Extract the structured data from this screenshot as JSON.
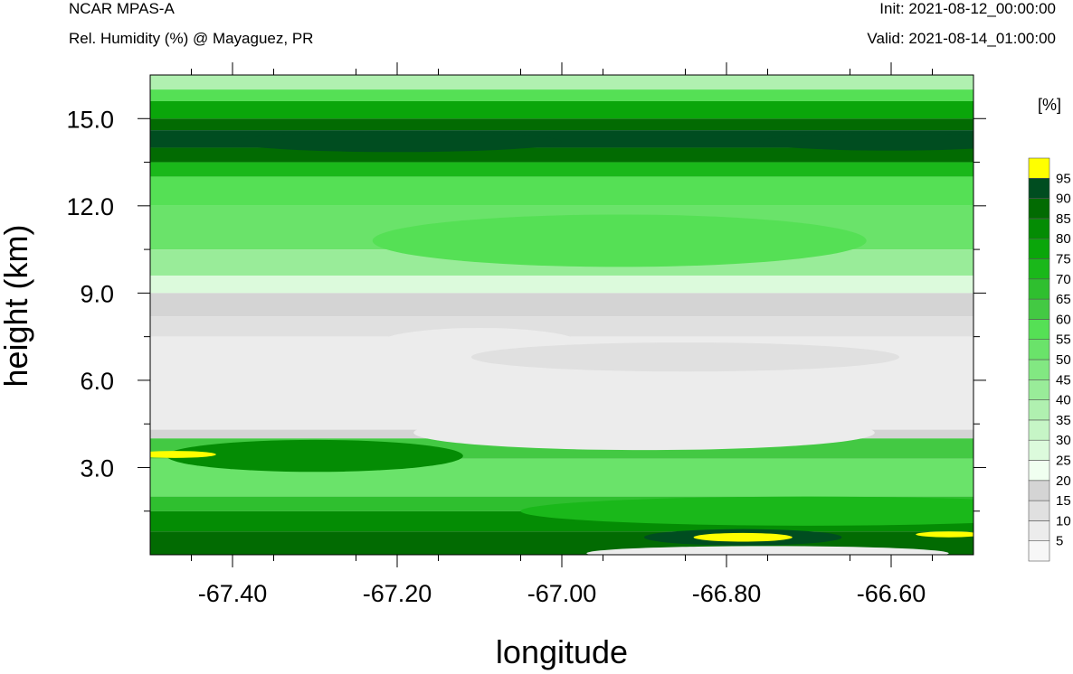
{
  "header": {
    "model": "NCAR MPAS-A",
    "subtitle": "Rel. Humidity (%) @ Mayaguez, PR",
    "init": "Init: 2021-08-12_00:00:00",
    "valid": "Valid: 2021-08-14_01:00:00"
  },
  "chart_data": {
    "type": "heatmap",
    "title": "Rel. Humidity (%) @ Mayaguez, PR",
    "xlabel": "longitude",
    "ylabel": "height (km)",
    "xlim": [
      -67.5,
      -66.5
    ],
    "ylim": [
      0,
      16.5
    ],
    "xticks": [
      -67.4,
      -67.2,
      -67.0,
      -66.8,
      -66.6
    ],
    "xtick_labels": [
      "-67.40",
      "-67.20",
      "-67.00",
      "-66.80",
      "-66.60"
    ],
    "yticks": [
      3.0,
      6.0,
      9.0,
      12.0,
      15.0
    ],
    "ytick_labels": [
      "3.0",
      "6.0",
      "9.0",
      "12.0",
      "15.0"
    ],
    "colorbar": {
      "unit": "[%]",
      "levels": [
        5,
        10,
        15,
        20,
        25,
        30,
        35,
        40,
        45,
        50,
        55,
        60,
        65,
        70,
        75,
        80,
        85,
        90,
        95
      ],
      "colors": [
        "#f7f7f7",
        "#ececec",
        "#e0e0e0",
        "#d4d4d4",
        "#f0fff0",
        "#dcfadc",
        "#c6f5c6",
        "#b0f0b0",
        "#99ec99",
        "#82e882",
        "#6ae36a",
        "#55e055",
        "#43c943",
        "#2fbf2f",
        "#1ab81a",
        "#0aa60a",
        "#048c04",
        "#026b02",
        "#004d20",
        "#ffff00"
      ]
    },
    "bands": [
      {
        "y0": 16.0,
        "y1": 16.5,
        "rh": 35
      },
      {
        "y0": 15.6,
        "y1": 16.0,
        "rh": 55
      },
      {
        "y0": 15.0,
        "y1": 15.6,
        "rh": 75
      },
      {
        "y0": 14.6,
        "y1": 15.0,
        "rh": 85
      },
      {
        "y0": 14.0,
        "y1": 14.6,
        "rh": 92
      },
      {
        "y0": 13.5,
        "y1": 14.0,
        "rh": 85
      },
      {
        "y0": 13.0,
        "y1": 13.5,
        "rh": 70
      },
      {
        "y0": 12.0,
        "y1": 13.0,
        "rh": 55
      },
      {
        "y0": 10.5,
        "y1": 12.0,
        "rh": 50
      },
      {
        "y0": 9.6,
        "y1": 10.5,
        "rh": 40
      },
      {
        "y0": 9.0,
        "y1": 9.6,
        "rh": 27
      },
      {
        "y0": 8.2,
        "y1": 9.0,
        "rh": 17
      },
      {
        "y0": 7.5,
        "y1": 8.2,
        "rh": 12
      },
      {
        "y0": 4.3,
        "y1": 7.5,
        "rh": 5
      },
      {
        "y0": 4.0,
        "y1": 4.3,
        "rh": 17
      },
      {
        "y0": 3.3,
        "y1": 4.0,
        "rh": 60
      },
      {
        "y0": 2.0,
        "y1": 3.3,
        "rh": 52
      },
      {
        "y0": 1.5,
        "y1": 2.0,
        "rh": 65
      },
      {
        "y0": 0.8,
        "y1": 1.5,
        "rh": 80
      },
      {
        "y0": 0.0,
        "y1": 0.8,
        "rh": 88
      }
    ],
    "features": [
      {
        "kind": "ellipse",
        "lon": -67.18,
        "h": 14.2,
        "rlon": 0.1,
        "rh_km": 0.22,
        "rh": 96
      },
      {
        "kind": "ellipse",
        "lon": -67.2,
        "h": 14.2,
        "rlon": 0.2,
        "rh_km": 0.35,
        "rh": 91
      },
      {
        "kind": "ellipse",
        "lon": -66.6,
        "h": 14.2,
        "rlon": 0.16,
        "rh_km": 0.3,
        "rh": 91
      },
      {
        "kind": "ellipse",
        "lon": -67.1,
        "h": 7.3,
        "rlon": 0.12,
        "rh_km": 0.5,
        "rh": 5
      },
      {
        "kind": "ellipse",
        "lon": -66.85,
        "h": 6.8,
        "rlon": 0.26,
        "rh_km": 0.5,
        "rh": 12
      },
      {
        "kind": "ellipse",
        "lon": -66.9,
        "h": 4.2,
        "rlon": 0.28,
        "rh_km": 0.6,
        "rh": 5
      },
      {
        "kind": "ellipse",
        "lon": -66.93,
        "h": 10.8,
        "rlon": 0.3,
        "rh_km": 0.9,
        "rh": 55
      },
      {
        "kind": "ellipse",
        "lon": -67.3,
        "h": 3.4,
        "rlon": 0.18,
        "rh_km": 0.55,
        "rh": 80
      },
      {
        "kind": "ellipse",
        "lon": -67.47,
        "h": 3.45,
        "rlon": 0.05,
        "rh_km": 0.12,
        "rh": 96
      },
      {
        "kind": "ellipse",
        "lon": -66.7,
        "h": 1.5,
        "rlon": 0.35,
        "rh_km": 0.5,
        "rh": 72
      },
      {
        "kind": "ellipse",
        "lon": -66.78,
        "h": 0.6,
        "rlon": 0.12,
        "rh_km": 0.28,
        "rh": 91
      },
      {
        "kind": "ellipse",
        "lon": -66.78,
        "h": 0.6,
        "rlon": 0.06,
        "rh_km": 0.15,
        "rh": 96
      },
      {
        "kind": "ellipse",
        "lon": -66.53,
        "h": 0.7,
        "rlon": 0.04,
        "rh_km": 0.1,
        "rh": 96
      },
      {
        "kind": "ellipse",
        "lon": -66.75,
        "h": 0.05,
        "rlon": 0.22,
        "rh_km": 0.25,
        "rh": 5
      }
    ]
  }
}
